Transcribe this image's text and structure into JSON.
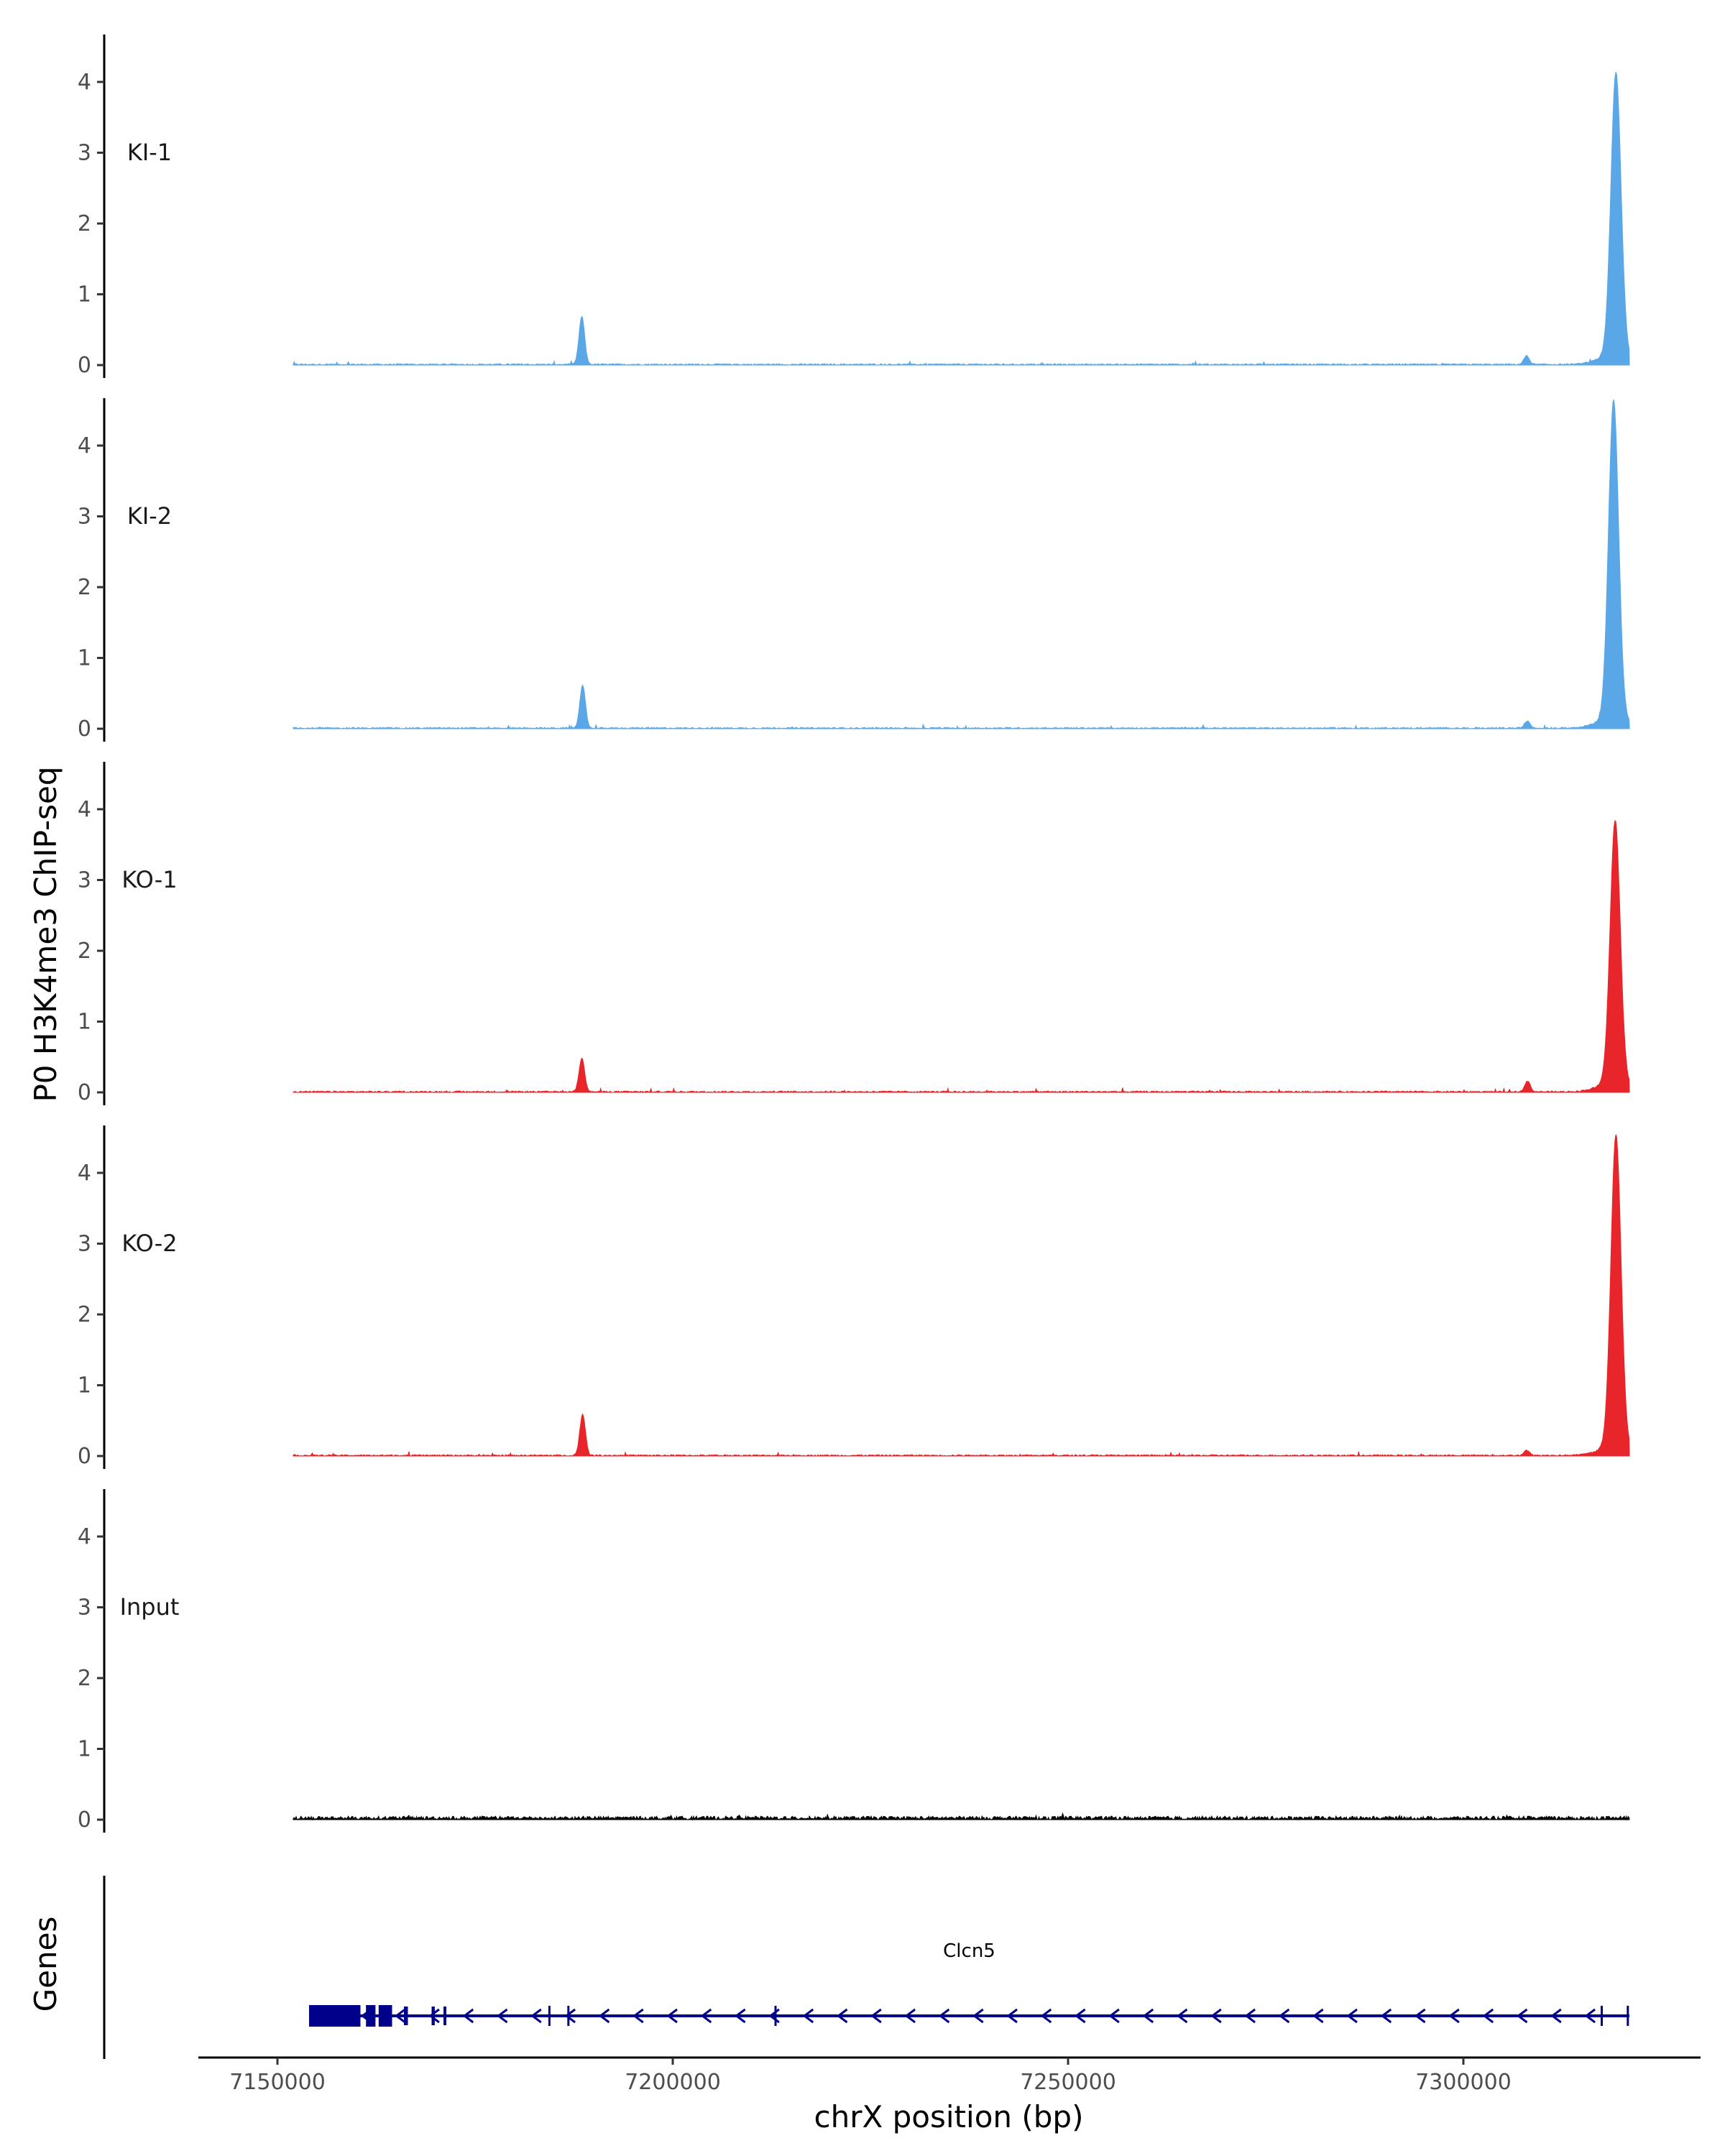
{
  "chart_data": {
    "type": "area",
    "ylabel": "P0 H3K4me3 ChIP-seq",
    "xlabel": "chrX position (bp)",
    "genes_label": "Genes",
    "xlim": [
      7140000,
      7330000
    ],
    "data_xrange": [
      7152000,
      7321000
    ],
    "ylim": [
      0,
      4.6
    ],
    "y_ticks": [
      0,
      1,
      2,
      3,
      4
    ],
    "x_ticks": [
      7150000,
      7200000,
      7250000,
      7300000
    ],
    "x_tick_labels": [
      "7150000",
      "7200000",
      "7250000",
      "7300000"
    ],
    "grid": false,
    "tracks": [
      {
        "name": "KI-1",
        "color": "#5aa7e8",
        "peaks": [
          {
            "x": 7188500,
            "y": 0.68
          },
          {
            "x": 7308000,
            "y": 0.12
          },
          {
            "x": 7319300,
            "y": 4.0
          }
        ]
      },
      {
        "name": "KI-2",
        "color": "#5aa7e8",
        "peaks": [
          {
            "x": 7188600,
            "y": 0.6
          },
          {
            "x": 7308100,
            "y": 0.1
          },
          {
            "x": 7319000,
            "y": 4.5
          }
        ]
      },
      {
        "name": "KO-1",
        "color": "#e8252a",
        "peaks": [
          {
            "x": 7188500,
            "y": 0.47
          },
          {
            "x": 7308100,
            "y": 0.15
          },
          {
            "x": 7319200,
            "y": 3.7
          }
        ]
      },
      {
        "name": "KO-2",
        "color": "#e8252a",
        "peaks": [
          {
            "x": 7188600,
            "y": 0.58
          },
          {
            "x": 7308000,
            "y": 0.07
          },
          {
            "x": 7319300,
            "y": 4.4
          }
        ]
      },
      {
        "name": "Input",
        "color": "#000000",
        "peaks": []
      }
    ],
    "gene": {
      "name": "Clcn5",
      "color": "#00008b",
      "start": 7154000,
      "end": 7321000,
      "strand": "-",
      "exons": [
        {
          "start": 7154000,
          "end": 7160500
        },
        {
          "start": 7161200,
          "end": 7162400
        },
        {
          "start": 7162800,
          "end": 7164500
        },
        {
          "start": 7166000,
          "end": 7166500
        },
        {
          "start": 7169500,
          "end": 7169900
        },
        {
          "start": 7171000,
          "end": 7171300
        }
      ],
      "introns_marks": [
        7184400,
        7186800,
        7213000,
        7317500,
        7320800
      ]
    }
  }
}
